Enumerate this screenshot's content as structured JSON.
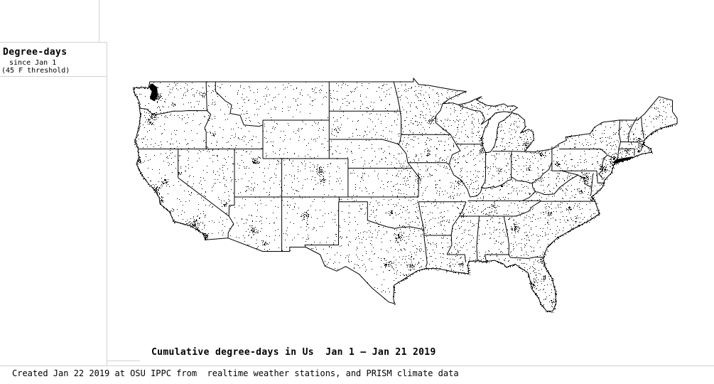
{
  "legend": {
    "title": "Degree-days",
    "subtitle1": "since Jan 1",
    "subtitle2": "(45 F threshold)"
  },
  "caption": "Cumulative degree-days in Us  Jan 1 — Jan 21 2019",
  "footer": "Created Jan 22 2019 at OSU IPPC from  realtime weather stations, and PRISM climate data",
  "colors": {
    "background": "#ffffff",
    "frame_line": "#d2d2d2",
    "map_stroke": "#000000",
    "station_dot": "#000000",
    "text": "#000000"
  },
  "map": {
    "name": "us-lower-48-weather-station-dot-map",
    "station_dot_count": 3800,
    "seed": 20190122
  }
}
